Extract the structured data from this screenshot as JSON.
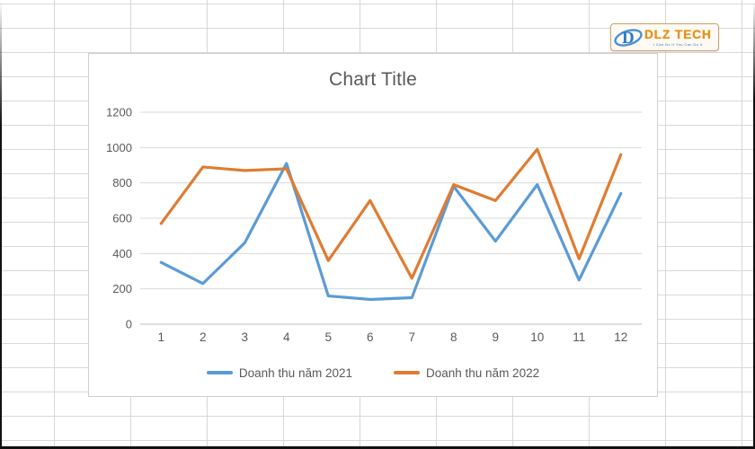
{
  "logo": {
    "brand": "DLZ TECH",
    "tagline": "I Can Do It You Can Do It",
    "brand_color": "#eb9110",
    "mark_color": "#2e7cc4"
  },
  "chart_data": {
    "type": "line",
    "title": "Chart Title",
    "categories": [
      "1",
      "2",
      "3",
      "4",
      "5",
      "6",
      "7",
      "8",
      "9",
      "10",
      "11",
      "12"
    ],
    "series": [
      {
        "name": "Doanh thu năm 2021",
        "color": "#5B9BD5",
        "values": [
          350,
          230,
          460,
          910,
          160,
          140,
          150,
          780,
          470,
          790,
          250,
          740
        ]
      },
      {
        "name": "Doanh thu năm 2022",
        "color": "#DF7C32",
        "values": [
          570,
          890,
          870,
          880,
          360,
          700,
          260,
          790,
          700,
          990,
          370,
          960
        ]
      }
    ],
    "ylim": [
      0,
      1200
    ],
    "ytick_step": 200,
    "grid": "horizontal",
    "legend_position": "bottom",
    "text_color": "#595959",
    "gridline_color": "#d9d9d9",
    "axis_line_color": "#bfbfbf"
  }
}
